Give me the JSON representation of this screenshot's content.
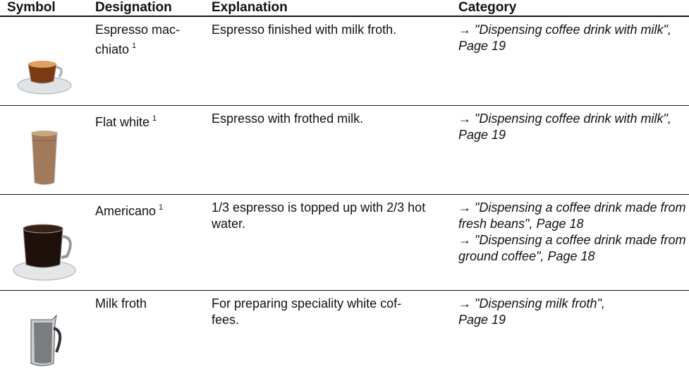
{
  "table": {
    "header": [
      "Symbol",
      "Designation",
      "Explanation",
      "Category"
    ],
    "rows": [
      {
        "designation": "Espresso mac-\nchiato",
        "footnote": "1",
        "explanation": "Espresso finished with milk froth.",
        "category": [
          {
            "arrow": "→",
            "title": "\"Dispensing coffee drink with milk\",",
            "page": "Page 19"
          }
        ]
      },
      {
        "designation": "Flat white",
        "footnote": "1",
        "explanation": "Espresso with frothed milk.",
        "category": [
          {
            "arrow": "→",
            "title": "\"Dispensing coffee drink with milk\",",
            "page": "Page 19"
          }
        ]
      },
      {
        "designation": "Americano",
        "footnote": "1",
        "explanation": "1/3 espresso is topped up with 2/3 hot water.",
        "category": [
          {
            "arrow": "→",
            "title": "\"Dispensing a coffee drink made from fresh beans\",",
            "page": "Page 18"
          },
          {
            "arrow": "→",
            "title": "\"Dispensing a coffee drink made from ground coffee\",",
            "page": "Page 18"
          }
        ]
      },
      {
        "designation": "Milk froth",
        "explanation": "For preparing speciality white cof-\nfees.",
        "category": [
          {
            "arrow": "→",
            "title": "\"Dispensing milk froth\",",
            "page": "Page 19"
          }
        ]
      }
    ]
  }
}
